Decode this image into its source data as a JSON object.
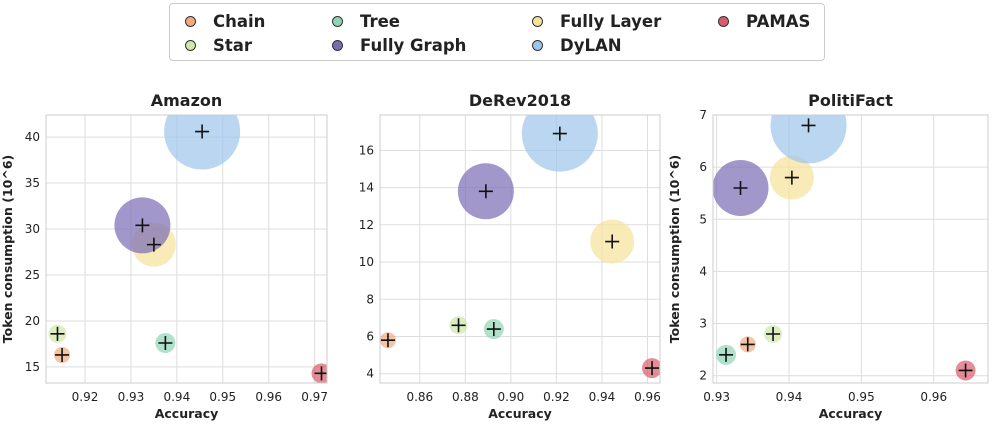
{
  "legend": [
    {
      "name": "Chain",
      "color": "#f2a97c"
    },
    {
      "name": "Star",
      "color": "#cfe8a8"
    },
    {
      "name": "Tree",
      "color": "#8fd4b5"
    },
    {
      "name": "Fully Graph",
      "color": "#7b6bb5"
    },
    {
      "name": "Fully Layer",
      "color": "#f5e39a"
    },
    {
      "name": "DyLAN",
      "color": "#9cc5eb"
    },
    {
      "name": "PAMAS",
      "color": "#d95c6e"
    }
  ],
  "chart_data": [
    {
      "type": "scatter",
      "title": "Amazon",
      "xlabel": "Accuracy",
      "ylabel": "Token consumption (10^6)",
      "xlim": [
        0.9115,
        0.9727
      ],
      "ylim": [
        13.25,
        42.4
      ],
      "xticks": [
        0.92,
        0.93,
        0.94,
        0.95,
        0.96,
        0.97
      ],
      "xtick_labels": [
        "0.92",
        "0.93",
        "0.94",
        "0.95",
        "0.96",
        "0.97"
      ],
      "yticks": [
        15,
        20,
        25,
        30,
        35,
        40
      ],
      "ytick_labels": [
        "15",
        "20",
        "25",
        "30",
        "35",
        "40"
      ],
      "points": [
        {
          "method": "Chain",
          "x": 0.915,
          "y": 16.3
        },
        {
          "method": "Star",
          "x": 0.914,
          "y": 18.6
        },
        {
          "method": "Tree",
          "x": 0.9375,
          "y": 17.6
        },
        {
          "method": "Fully Graph",
          "x": 0.9325,
          "y": 30.4
        },
        {
          "method": "Fully Layer",
          "x": 0.935,
          "y": 28.3
        },
        {
          "method": "DyLAN",
          "x": 0.9455,
          "y": 40.6
        },
        {
          "method": "PAMAS",
          "x": 0.9715,
          "y": 14.3
        }
      ]
    },
    {
      "type": "scatter",
      "title": "DeRev2018",
      "xlabel": "Accuracy",
      "ylabel": "",
      "xlim": [
        0.8425,
        0.9655
      ],
      "ylim": [
        3.5,
        17.9
      ],
      "xticks": [
        0.86,
        0.88,
        0.9,
        0.92,
        0.94,
        0.96
      ],
      "xtick_labels": [
        "0.86",
        "0.88",
        "0.90",
        "0.92",
        "0.94",
        "0.96"
      ],
      "yticks": [
        4,
        6,
        8,
        10,
        12,
        14,
        16
      ],
      "ytick_labels": [
        "4",
        "6",
        "8",
        "10",
        "12",
        "14",
        "16"
      ],
      "points": [
        {
          "method": "Chain",
          "x": 0.846,
          "y": 5.8
        },
        {
          "method": "Star",
          "x": 0.877,
          "y": 6.6
        },
        {
          "method": "Tree",
          "x": 0.8925,
          "y": 6.4
        },
        {
          "method": "Fully Graph",
          "x": 0.889,
          "y": 13.8
        },
        {
          "method": "Fully Layer",
          "x": 0.9445,
          "y": 11.1
        },
        {
          "method": "DyLAN",
          "x": 0.9215,
          "y": 16.9
        },
        {
          "method": "PAMAS",
          "x": 0.962,
          "y": 4.3
        }
      ]
    },
    {
      "type": "scatter",
      "title": "PolitiFact",
      "xlabel": "Accuracy",
      "ylabel": "Token consumption (10^6)",
      "xlim": [
        0.9295,
        0.9675
      ],
      "ylim": [
        1.86,
        7.0
      ],
      "xticks": [
        0.93,
        0.94,
        0.95,
        0.96
      ],
      "xtick_labels": [
        "0.93",
        "0.94",
        "0.95",
        "0.96"
      ],
      "yticks": [
        2,
        3,
        4,
        5,
        6,
        7
      ],
      "ytick_labels": [
        "2",
        "3",
        "4",
        "5",
        "6",
        "7"
      ],
      "points": [
        {
          "method": "Chain",
          "x": 0.9343,
          "y": 2.6
        },
        {
          "method": "Star",
          "x": 0.9378,
          "y": 2.8
        },
        {
          "method": "Tree",
          "x": 0.9313,
          "y": 2.4
        },
        {
          "method": "Fully Graph",
          "x": 0.9333,
          "y": 5.6
        },
        {
          "method": "Fully Layer",
          "x": 0.9404,
          "y": 5.8
        },
        {
          "method": "DyLAN",
          "x": 0.9427,
          "y": 6.8
        },
        {
          "method": "PAMAS",
          "x": 0.9644,
          "y": 2.1
        }
      ]
    }
  ]
}
